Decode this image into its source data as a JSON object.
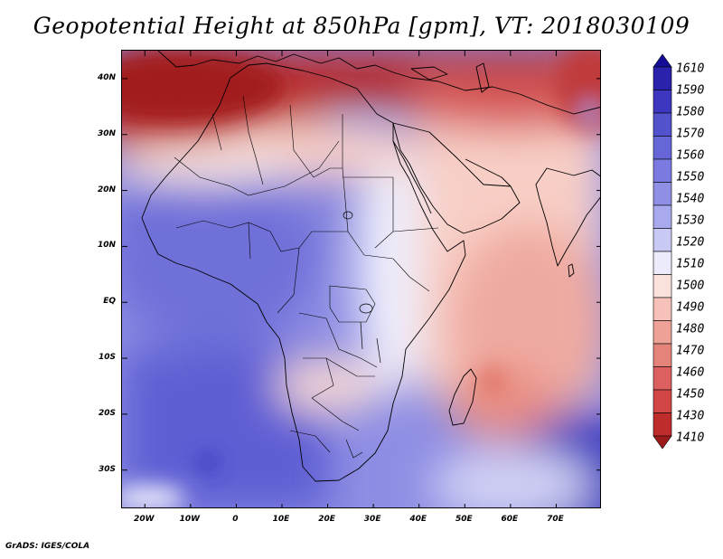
{
  "title": "Geopotential Height at 850hPa [gpm], VT: 2018030109",
  "footer": "GrADS: IGES/COLA",
  "map": {
    "lon_range": [
      -25,
      80
    ],
    "lat_range": [
      -37,
      45
    ],
    "lat_labels": [
      {
        "text": "40N",
        "lat": 40
      },
      {
        "text": "30N",
        "lat": 30
      },
      {
        "text": "20N",
        "lat": 20
      },
      {
        "text": "10N",
        "lat": 10
      },
      {
        "text": "EQ",
        "lat": 0
      },
      {
        "text": "10S",
        "lat": -10
      },
      {
        "text": "20S",
        "lat": -20
      },
      {
        "text": "30S",
        "lat": -30
      }
    ],
    "lon_labels": [
      {
        "text": "20W",
        "lon": -20
      },
      {
        "text": "10W",
        "lon": -10
      },
      {
        "text": "0",
        "lon": 0
      },
      {
        "text": "10E",
        "lon": 10
      },
      {
        "text": "20E",
        "lon": 20
      },
      {
        "text": "30E",
        "lon": 30
      },
      {
        "text": "40E",
        "lon": 40
      },
      {
        "text": "50E",
        "lon": 50
      },
      {
        "text": "60E",
        "lon": 60
      },
      {
        "text": "70E",
        "lon": 70
      }
    ]
  },
  "colorbar": {
    "levels": [
      "1610",
      "1590",
      "1580",
      "1570",
      "1560",
      "1550",
      "1540",
      "1530",
      "1520",
      "1510",
      "1500",
      "1490",
      "1480",
      "1470",
      "1460",
      "1450",
      "1430",
      "1410"
    ],
    "colors": [
      "#140c96",
      "#2a22ac",
      "#3d37bf",
      "#5252cc",
      "#6666d9",
      "#7a7ae0",
      "#8f8fe6",
      "#a9a9ee",
      "#c9c9f6",
      "#ebebfc",
      "#fbe1dc",
      "#f5c1b8",
      "#eea297",
      "#e3837a",
      "#dc6060",
      "#d34646",
      "#bf2c2c",
      "#9c1a1a"
    ]
  }
}
